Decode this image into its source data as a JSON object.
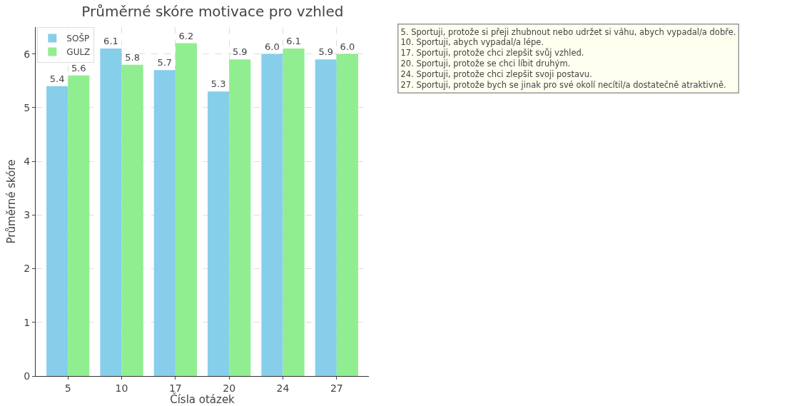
{
  "chart_data": {
    "type": "bar",
    "title": "Průměrné skóre motivace pro vzhled",
    "xlabel": "Čísla otázek",
    "ylabel": "Průměrné skóre",
    "categories": [
      "5",
      "10",
      "17",
      "20",
      "24",
      "27"
    ],
    "series": [
      {
        "name": "SOŠP",
        "color": "#87ceeb",
        "values": [
          5.4,
          6.1,
          5.7,
          5.3,
          6.0,
          5.9
        ],
        "value_labels": [
          "5.4",
          "6.1",
          "5.7",
          "5.3",
          "6.0",
          "5.9"
        ]
      },
      {
        "name": "GULZ",
        "color": "#90ee90",
        "values": [
          5.6,
          5.8,
          6.2,
          5.9,
          6.1,
          6.0
        ],
        "value_labels": [
          "5.6",
          "5.8",
          "6.2",
          "5.9",
          "6.1",
          "6.0"
        ]
      }
    ],
    "ylim": [
      0,
      6.5
    ],
    "yticks": [
      0,
      1,
      2,
      3,
      4,
      5,
      6
    ],
    "grid": true,
    "legend": "top left",
    "annotations": [
      "5. Sportuji, protože si přeji zhubnout nebo udržet si váhu, abych vypadal/a dobře.",
      "10. Sportuji, abych vypadal/a lépe.",
      "17. Sportuji, protože chci zlepšit svůj vzhled.",
      "20. Sportuji, protože se chci líbit druhým.",
      "24. Sportuji, protože chci zlepšit svoji postavu.",
      "27. Sportuji, protože bych se jinak pro své okolí necítil/a dostatečně atraktivně."
    ]
  }
}
